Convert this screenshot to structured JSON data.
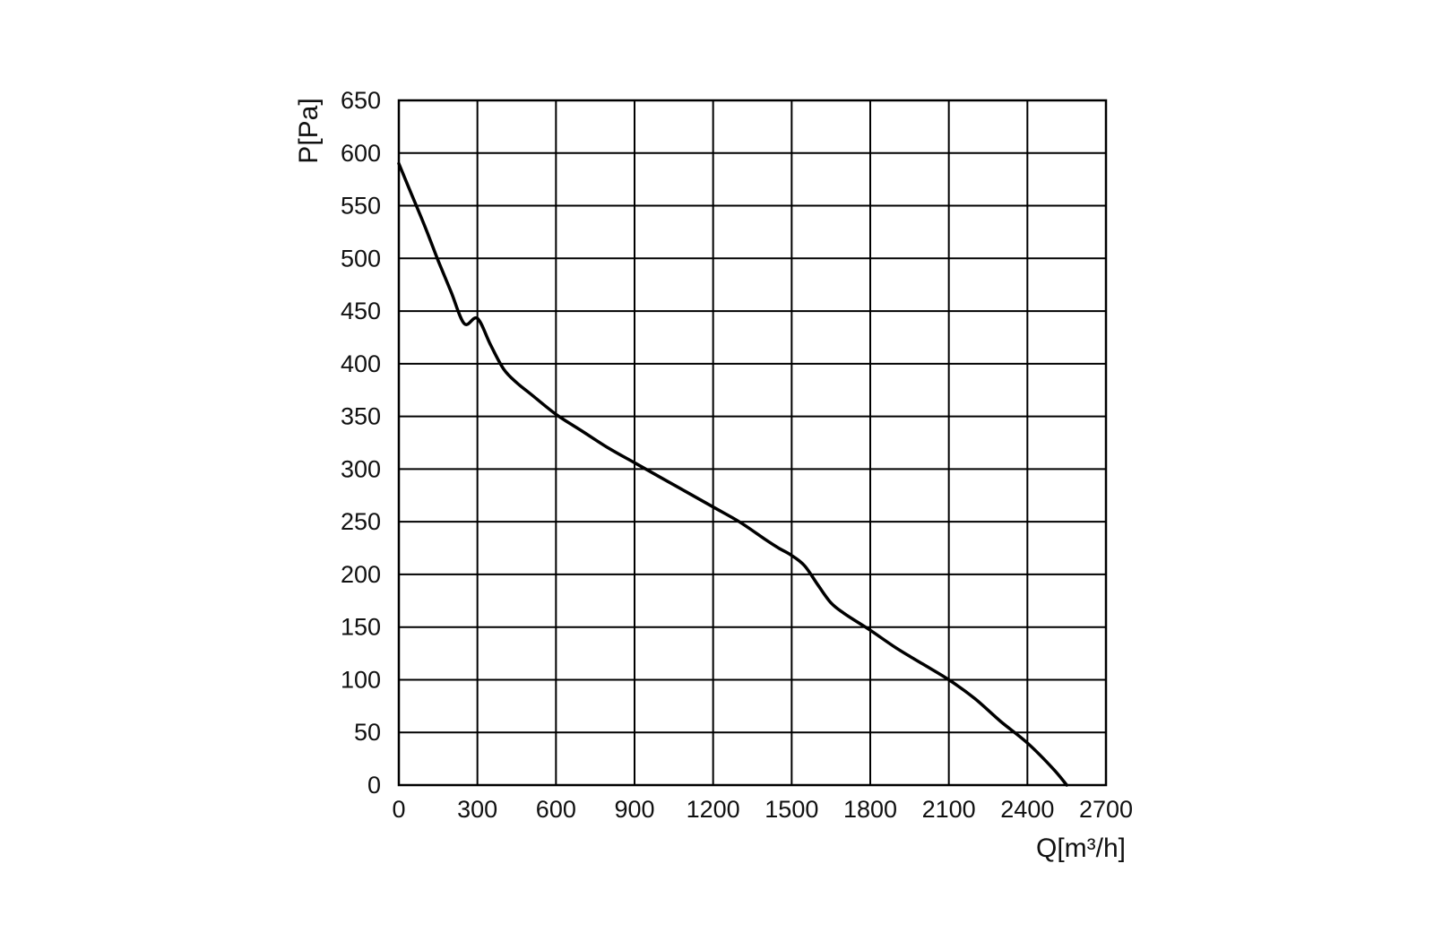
{
  "chart_data": {
    "type": "line",
    "title": "",
    "xlabel": "Q[m³/h]",
    "ylabel": "P[Pa]",
    "xlim": [
      0,
      2700
    ],
    "ylim": [
      0,
      650
    ],
    "x_ticks": [
      "0",
      "300",
      "600",
      "900",
      "1200",
      "1500",
      "1800",
      "2100",
      "2400",
      "2700"
    ],
    "y_ticks": [
      "0",
      "50",
      "100",
      "150",
      "200",
      "250",
      "300",
      "350",
      "400",
      "450",
      "500",
      "550",
      "600",
      "650"
    ],
    "grid": true,
    "legend": "none",
    "line_color": "#000000",
    "grid_color": "#000000",
    "series": [
      {
        "x": [
          0,
          50,
          100,
          150,
          200,
          250,
          300,
          350,
          400,
          450,
          500,
          600,
          700,
          800,
          900,
          1000,
          1100,
          1200,
          1300,
          1400,
          1450,
          1500,
          1550,
          1600,
          1650,
          1700,
          1800,
          1900,
          2000,
          2100,
          2200,
          2300,
          2400,
          2500,
          2550
        ],
        "y": [
          590,
          560,
          530,
          498,
          468,
          438,
          443,
          418,
          395,
          382,
          372,
          352,
          336,
          320,
          306,
          292,
          278,
          264,
          250,
          233,
          225,
          218,
          208,
          190,
          173,
          163,
          147,
          130,
          115,
          100,
          82,
          60,
          40,
          15,
          0
        ]
      }
    ]
  }
}
